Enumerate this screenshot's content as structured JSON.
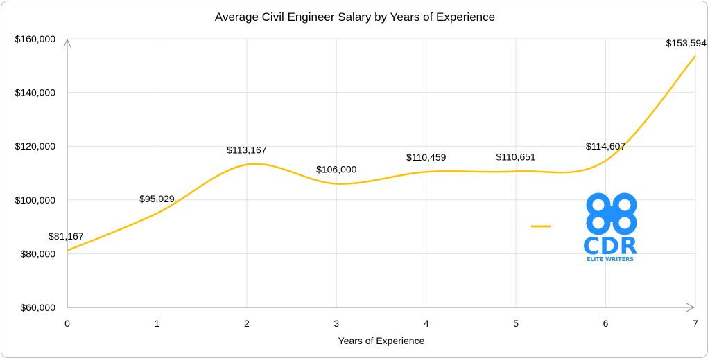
{
  "chart_data": {
    "type": "line",
    "title": "Average Civil Engineer Salary by Years of Experience",
    "xlabel": "Years of Experience",
    "ylabel": "",
    "x": [
      0,
      1,
      2,
      3,
      4,
      5,
      6,
      7
    ],
    "x_tick_labels": [
      "0",
      "1",
      "2",
      "3",
      "4",
      "5",
      "6",
      "7"
    ],
    "y_tick_labels": [
      "$60,000",
      "$80,000",
      "$100,000",
      "$120,000",
      "$140,000",
      "$160,000"
    ],
    "ylim": [
      60000,
      160000
    ],
    "xlim": [
      0,
      7
    ],
    "grid": true,
    "smooth": true,
    "series": [
      {
        "values": [
          81167,
          95029,
          113167,
          106000,
          110459,
          110651,
          114607,
          153594
        ],
        "labels": [
          "$81,167",
          "$95,029",
          "$113,167",
          "$106,000",
          "$110,459",
          "$110,651",
          "$114,607",
          "$153,594"
        ],
        "color": "#FFC000"
      }
    ],
    "legend_placement": "right"
  },
  "logo": {
    "mark": "CDR",
    "tagline": "ELITE WRITERS",
    "color": "#1E90FF"
  }
}
